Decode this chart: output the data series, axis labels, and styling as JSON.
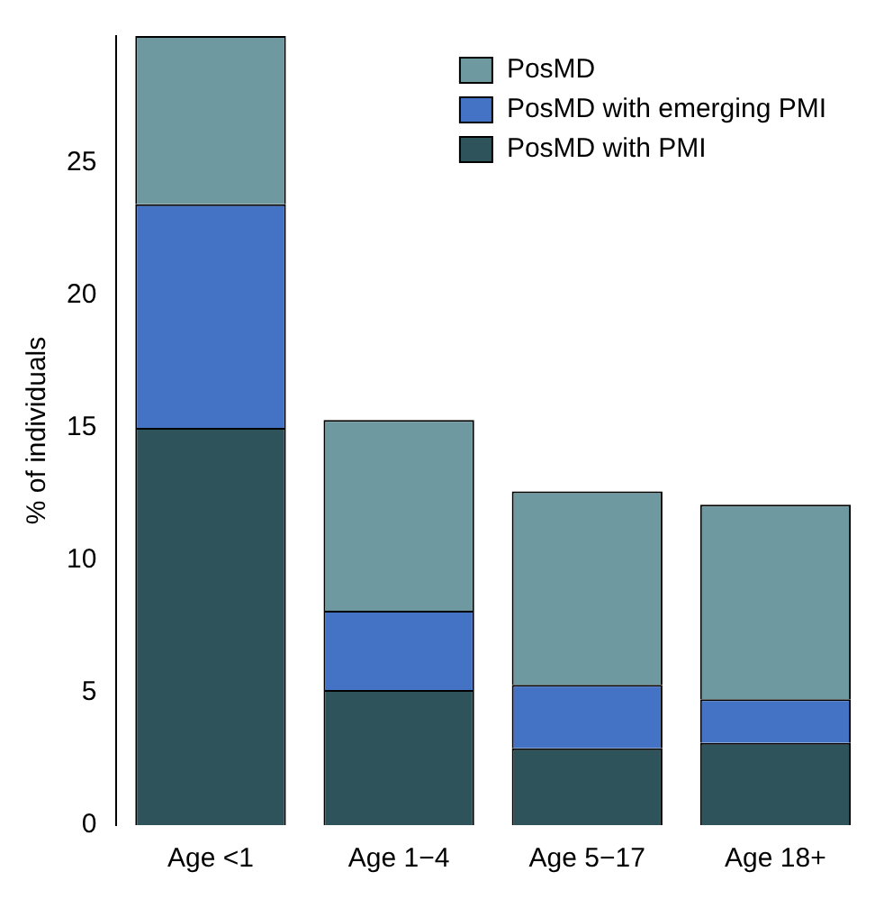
{
  "chart_data": {
    "type": "bar",
    "ylabel": "% of individuals",
    "categories": [
      "Age <1",
      "Age 1−4",
      "Age 5−17",
      "Age 18+"
    ],
    "stacked": true,
    "ylim": [
      0,
      29.8
    ],
    "yticks": [
      0,
      5,
      10,
      15,
      20,
      25
    ],
    "grid": false,
    "legend": "top right",
    "series": [
      {
        "name": "PosMD with PMI",
        "color": "#2f535a",
        "values": [
          15.0,
          5.1,
          2.9,
          3.1
        ]
      },
      {
        "name": "PosMD with emerging PMI",
        "color": "#4472c4",
        "values": [
          8.45,
          3.0,
          2.4,
          1.65
        ]
      },
      {
        "name": "PosMD",
        "color": "#6f99a0",
        "values": [
          6.35,
          7.2,
          7.3,
          7.35
        ]
      }
    ]
  }
}
